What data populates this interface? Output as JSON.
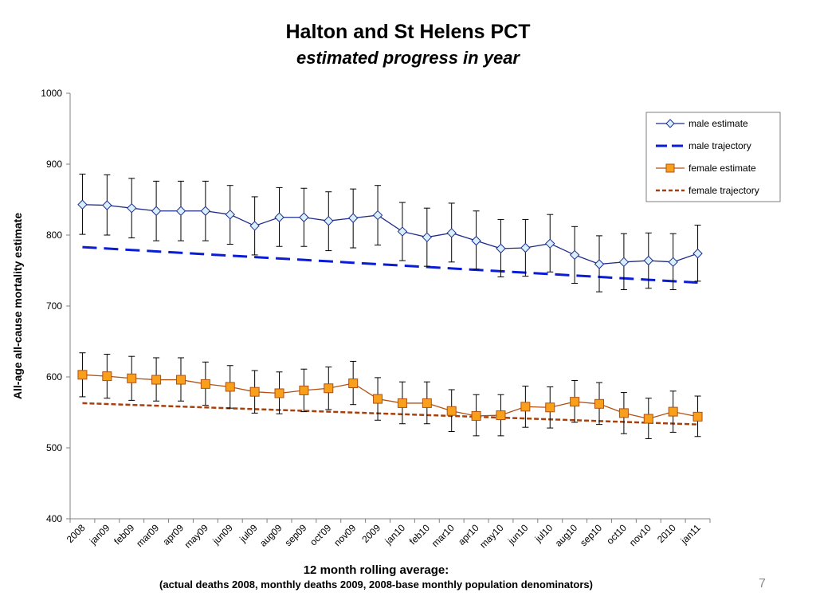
{
  "slide": {
    "page_number": "7"
  },
  "chart_data": {
    "type": "line",
    "title": "Halton and St Helens PCT",
    "subtitle": "estimated progress in year",
    "ylabel": "All-age all-cause mortality estimate",
    "xlabel": "12 month rolling average:",
    "xlabel_sub": "(actual deaths 2008, monthly deaths 2009, 2008-base monthly population denominators)",
    "ylim": [
      400,
      1000
    ],
    "yticks": [
      400,
      500,
      600,
      700,
      800,
      900,
      1000
    ],
    "grid": false,
    "legend_position": "top-right",
    "categories": [
      "2008",
      "jan09",
      "feb09",
      "mar09",
      "apr09",
      "may09",
      "jun09",
      "jul09",
      "aug09",
      "sep09",
      "oct'09",
      "nov09",
      "2009",
      "jan10",
      "feb10",
      "mar10",
      "apr10",
      "may10",
      "jun10",
      "jul10",
      "aug10",
      "sep10",
      "oct10",
      "nov10",
      "2010",
      "jan11"
    ],
    "series": [
      {
        "name": "male estimate",
        "style": "line-marker",
        "marker": "diamond",
        "color": "#1f2d8a",
        "marker_fill": "#d7efff",
        "values": [
          843,
          842,
          838,
          834,
          834,
          834,
          829,
          813,
          825,
          825,
          820,
          824,
          828,
          805,
          797,
          803,
          792,
          781,
          782,
          788,
          772,
          759,
          762,
          764,
          762,
          774
        ],
        "lower": [
          801,
          800,
          796,
          792,
          792,
          792,
          787,
          772,
          784,
          784,
          778,
          782,
          786,
          764,
          756,
          762,
          752,
          741,
          742,
          748,
          732,
          720,
          723,
          725,
          723,
          735
        ],
        "upper": [
          886,
          885,
          880,
          876,
          876,
          876,
          870,
          854,
          867,
          866,
          861,
          865,
          870,
          846,
          838,
          845,
          834,
          822,
          822,
          829,
          812,
          799,
          802,
          803,
          802,
          814
        ]
      },
      {
        "name": "male trajectory",
        "style": "dashed",
        "color": "#0a1cd6",
        "values": [
          783,
          781.0,
          779.0,
          777.0,
          775.0,
          773.0,
          771.0,
          769.0,
          767.0,
          765.0,
          763.0,
          761.0,
          759.0,
          757.0,
          755.0,
          753.0,
          751.0,
          749.0,
          747.0,
          745.0,
          743.0,
          741.0,
          739.0,
          737.0,
          735.0,
          733
        ]
      },
      {
        "name": "female estimate",
        "style": "line-marker",
        "marker": "square",
        "color": "#b25010",
        "marker_fill": "#f8a01c",
        "values": [
          603,
          601,
          598,
          596,
          596,
          590,
          586,
          579,
          577,
          581,
          584,
          591,
          569,
          563,
          563,
          552,
          545,
          546,
          558,
          557,
          565,
          562,
          549,
          541,
          551,
          544
        ],
        "lower": [
          572,
          570,
          567,
          566,
          566,
          560,
          556,
          549,
          548,
          551,
          554,
          561,
          539,
          534,
          534,
          523,
          517,
          517,
          529,
          528,
          536,
          533,
          520,
          513,
          522,
          516
        ],
        "upper": [
          634,
          632,
          629,
          627,
          627,
          621,
          616,
          609,
          607,
          611,
          614,
          622,
          599,
          593,
          593,
          582,
          575,
          575,
          587,
          586,
          595,
          592,
          578,
          570,
          580,
          573
        ]
      },
      {
        "name": "female trajectory",
        "style": "dotted",
        "color": "#a8400c",
        "values": [
          563,
          561.8,
          560.6,
          559.4,
          558.2,
          557.0,
          555.8,
          554.6,
          553.4,
          552.2,
          551.0,
          549.8,
          548.6,
          547.4,
          546.2,
          545.0,
          543.8,
          542.6,
          541.4,
          540.2,
          539.0,
          537.8,
          536.6,
          535.4,
          534.2,
          533
        ]
      }
    ]
  }
}
